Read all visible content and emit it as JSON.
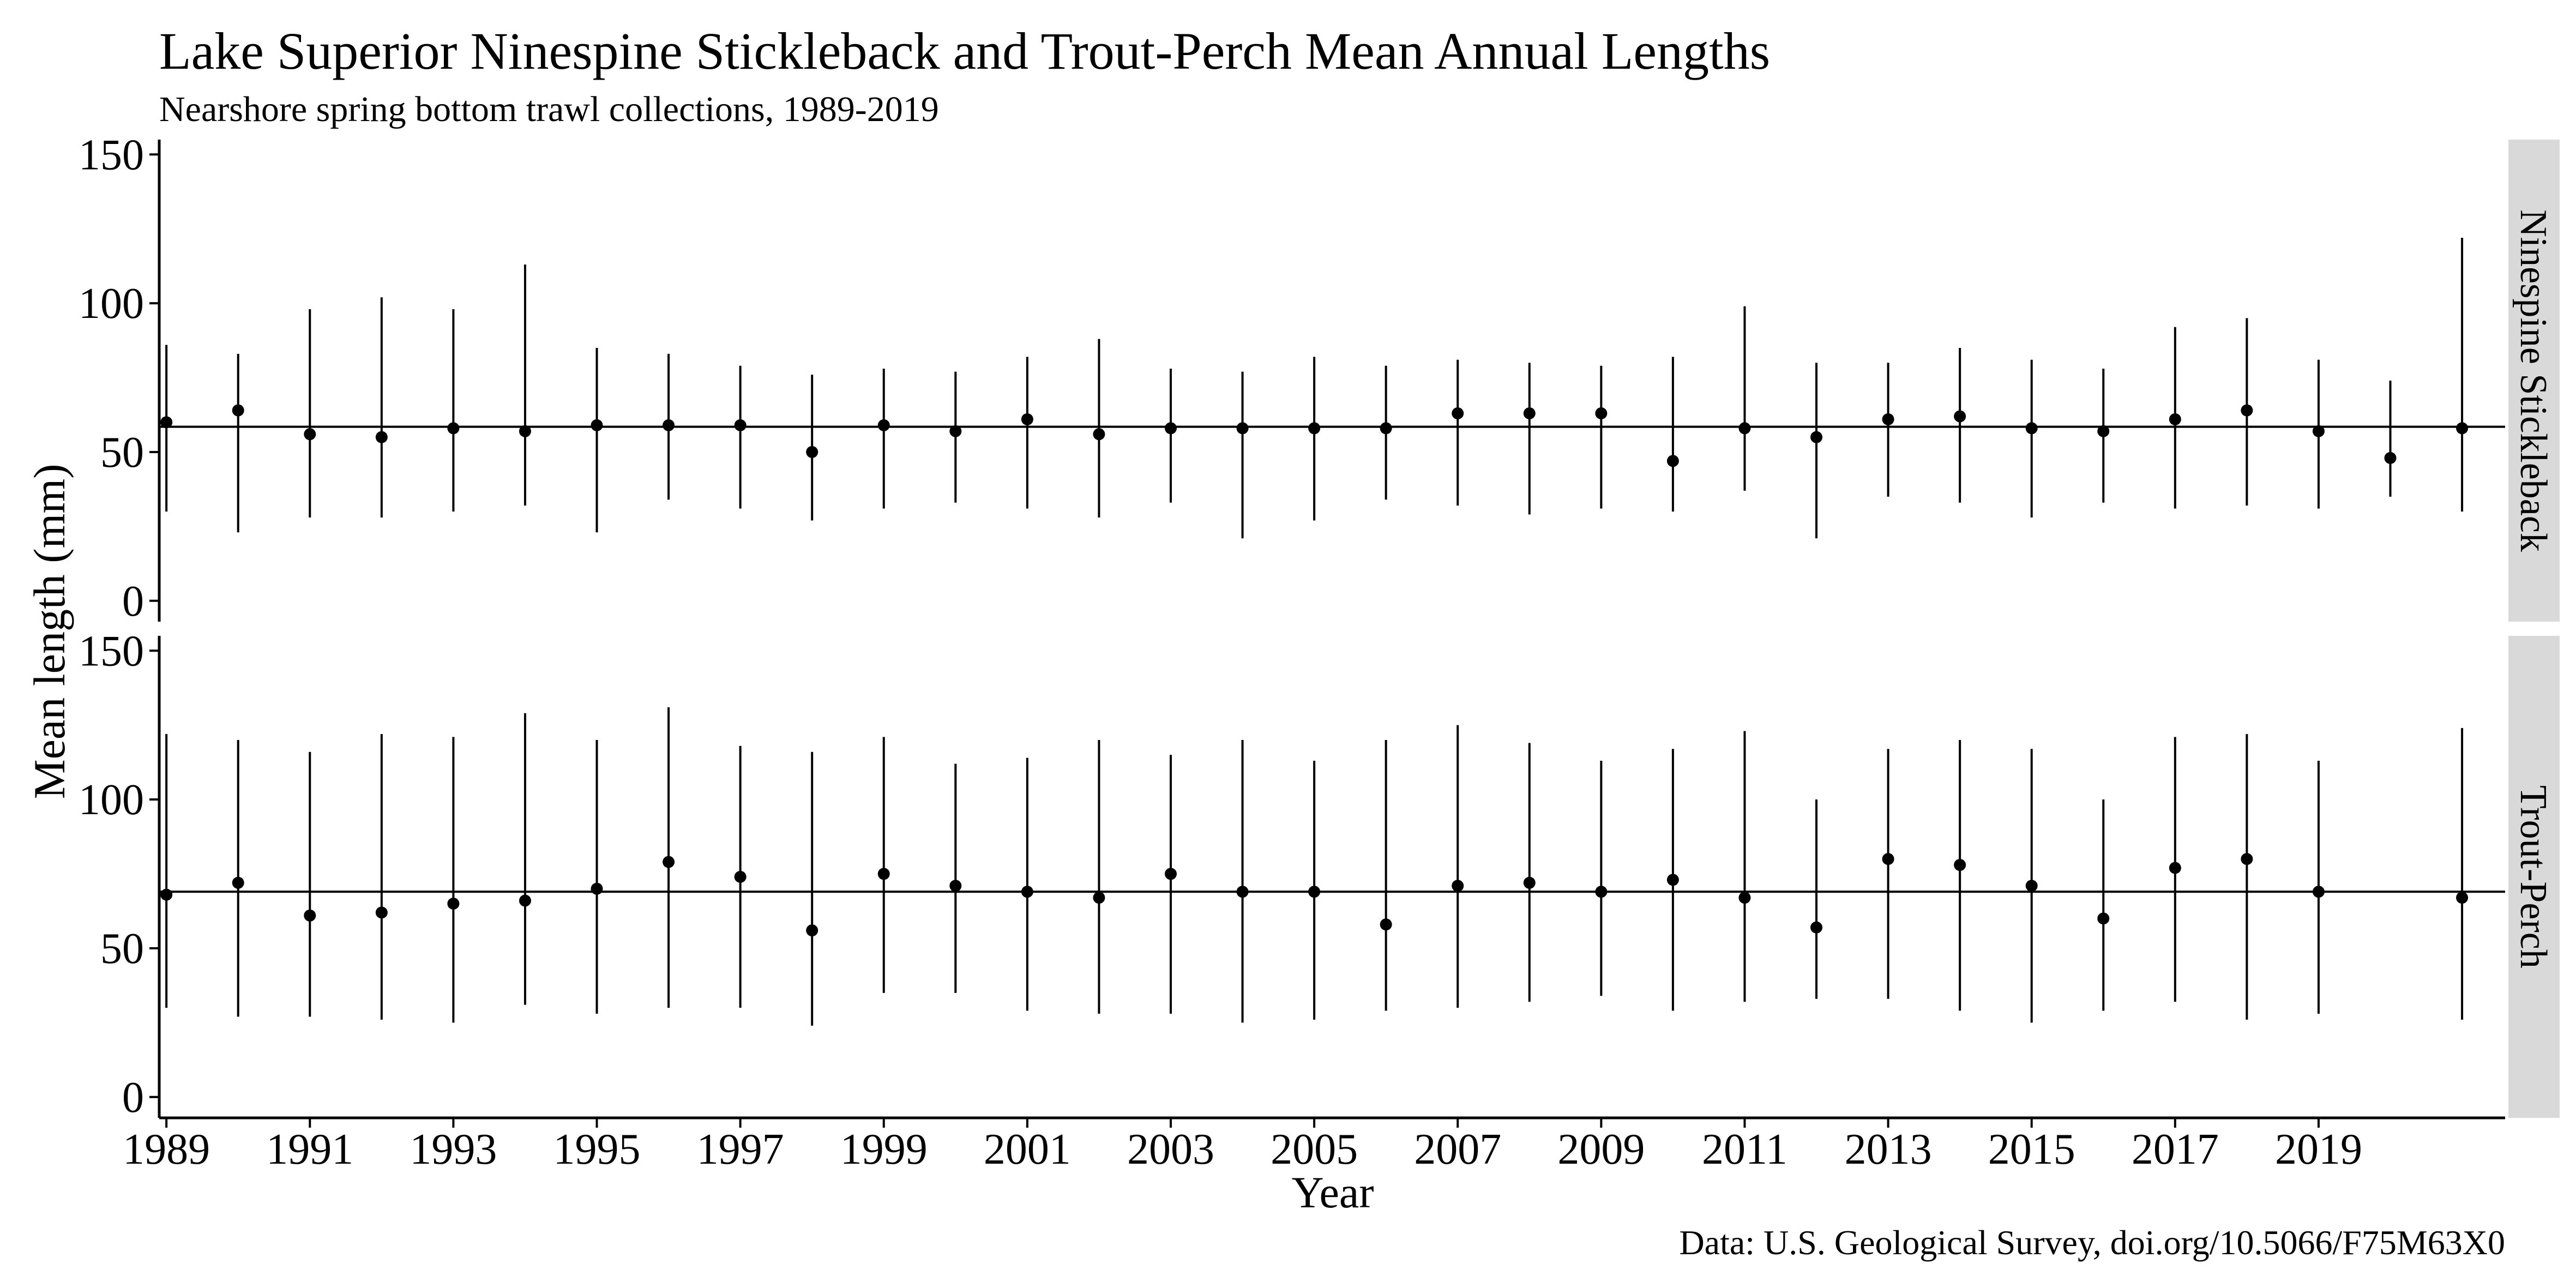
{
  "chart_data": {
    "type": "scatter",
    "title": "Lake Superior Ninespine Stickleback and Trout-Perch Mean Annual Lengths",
    "subtitle": "Nearshore spring bottom trawl collections, 1989-2019",
    "xlabel": "Year",
    "ylabel": "Mean length (mm)",
    "caption": "Data: U.S. Geological Survey, doi.org/10.5066/F75M63X0",
    "x": [
      1989,
      1990,
      1991,
      1992,
      1993,
      1994,
      1995,
      1996,
      1997,
      1998,
      1999,
      2000,
      2001,
      2002,
      2003,
      2004,
      2005,
      2006,
      2007,
      2008,
      2009,
      2010,
      2011,
      2012,
      2013,
      2014,
      2015,
      2016,
      2017,
      2018,
      2019,
      2020,
      2021
    ],
    "xticks": [
      "1989",
      "1991",
      "1993",
      "1995",
      "1997",
      "1999",
      "2001",
      "2003",
      "2005",
      "2007",
      "2009",
      "2011",
      "2013",
      "2015",
      "2017",
      "2019"
    ],
    "xlim": [
      1988.9,
      2021.6
    ],
    "ylim": [
      -7,
      155
    ],
    "yticks": [
      "0",
      "50",
      "100",
      "150"
    ],
    "grid": false,
    "panels": [
      {
        "name": "Ninespine Stickleback",
        "overall_mean": 58.5,
        "mean": [
          60,
          64,
          56,
          55,
          58,
          57,
          59,
          59,
          59,
          50,
          59,
          57,
          61,
          56,
          58,
          58,
          58,
          58,
          63,
          63,
          63,
          47,
          58,
          55,
          61,
          62,
          58,
          57,
          61,
          64,
          57,
          48,
          58
        ],
        "low": [
          30,
          23,
          28,
          28,
          30,
          32,
          23,
          34,
          31,
          27,
          31,
          33,
          31,
          28,
          33,
          21,
          27,
          34,
          32,
          29,
          31,
          30,
          37,
          21,
          35,
          33,
          28,
          33,
          31,
          32,
          31,
          35,
          30
        ],
        "high": [
          86,
          83,
          98,
          102,
          98,
          113,
          85,
          83,
          79,
          76,
          78,
          77,
          82,
          88,
          78,
          77,
          82,
          79,
          81,
          80,
          79,
          82,
          99,
          80,
          80,
          85,
          81,
          78,
          92,
          95,
          81,
          74,
          122
        ]
      },
      {
        "name": "Trout-Perch",
        "overall_mean": 69,
        "mean": [
          68,
          72,
          61,
          62,
          65,
          66,
          70,
          79,
          74,
          56,
          75,
          71,
          69,
          67,
          75,
          69,
          69,
          58,
          71,
          72,
          69,
          73,
          67,
          57,
          80,
          78,
          71,
          60,
          77,
          80,
          69,
          null,
          67
        ],
        "low": [
          30,
          27,
          27,
          26,
          25,
          31,
          28,
          30,
          30,
          24,
          35,
          35,
          29,
          28,
          28,
          25,
          26,
          29,
          30,
          32,
          34,
          29,
          32,
          33,
          33,
          29,
          25,
          29,
          32,
          26,
          28,
          null,
          26
        ],
        "high": [
          122,
          120,
          116,
          122,
          121,
          129,
          120,
          131,
          118,
          116,
          121,
          112,
          114,
          120,
          115,
          120,
          113,
          120,
          125,
          119,
          113,
          117,
          123,
          100,
          117,
          120,
          117,
          100,
          121,
          122,
          113,
          null,
          124
        ]
      }
    ]
  }
}
